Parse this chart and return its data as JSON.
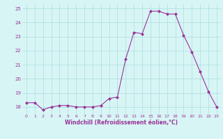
{
  "x": [
    0,
    1,
    2,
    3,
    4,
    5,
    6,
    7,
    8,
    9,
    10,
    11,
    12,
    13,
    14,
    15,
    16,
    17,
    18,
    19,
    20,
    21,
    22,
    23
  ],
  "y": [
    18.3,
    18.3,
    17.8,
    18.0,
    18.1,
    18.1,
    18.0,
    18.0,
    18.0,
    18.1,
    18.6,
    18.7,
    21.4,
    23.3,
    23.2,
    24.8,
    24.8,
    24.6,
    24.6,
    23.1,
    21.9,
    20.5,
    19.1,
    18.0
  ],
  "line_color": "#993399",
  "marker": "D",
  "marker_size": 2,
  "bg_color": "#d8f5f5",
  "grid_color": "#aadddd",
  "xlabel": "Windchill (Refroidissement éolien,°C)",
  "xlabel_color": "#993399",
  "tick_color": "#993399",
  "ylim": [
    17.5,
    25.3
  ],
  "yticks": [
    18,
    19,
    20,
    21,
    22,
    23,
    24,
    25
  ],
  "xticks": [
    0,
    1,
    2,
    3,
    4,
    5,
    6,
    7,
    8,
    9,
    10,
    11,
    12,
    13,
    14,
    15,
    16,
    17,
    18,
    19,
    20,
    21,
    22,
    23
  ]
}
